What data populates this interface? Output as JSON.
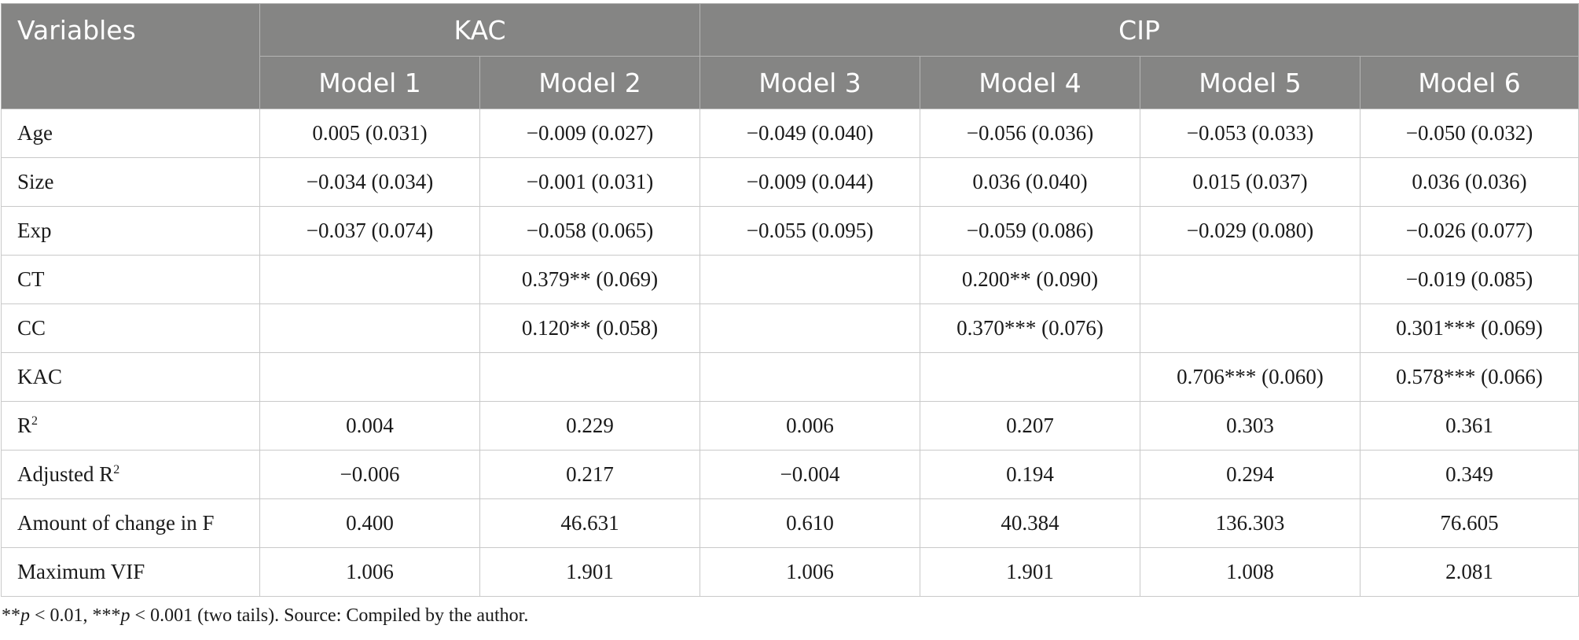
{
  "header": {
    "variables_label": "Variables",
    "group_kac": "KAC",
    "group_cip": "CIP",
    "models": [
      "Model 1",
      "Model 2",
      "Model 3",
      "Model 4",
      "Model 5",
      "Model 6"
    ]
  },
  "rows": [
    {
      "label": "Age",
      "sup": "",
      "cells": [
        "0.005 (0.031)",
        "−0.009 (0.027)",
        "−0.049 (0.040)",
        "−0.056 (0.036)",
        "−0.053 (0.033)",
        "−0.050 (0.032)"
      ]
    },
    {
      "label": "Size",
      "sup": "",
      "cells": [
        "−0.034 (0.034)",
        "−0.001 (0.031)",
        "−0.009 (0.044)",
        "0.036 (0.040)",
        "0.015 (0.037)",
        "0.036 (0.036)"
      ]
    },
    {
      "label": "Exp",
      "sup": "",
      "cells": [
        "−0.037 (0.074)",
        "−0.058 (0.065)",
        "−0.055 (0.095)",
        "−0.059 (0.086)",
        "−0.029 (0.080)",
        "−0.026 (0.077)"
      ]
    },
    {
      "label": "CT",
      "sup": "",
      "cells": [
        "",
        "0.379** (0.069)",
        "",
        "0.200** (0.090)",
        "",
        "−0.019 (0.085)"
      ]
    },
    {
      "label": "CC",
      "sup": "",
      "cells": [
        "",
        "0.120** (0.058)",
        "",
        "0.370*** (0.076)",
        "",
        "0.301*** (0.069)"
      ]
    },
    {
      "label": "KAC",
      "sup": "",
      "cells": [
        "",
        "",
        "",
        "",
        "0.706*** (0.060)",
        "0.578*** (0.066)"
      ]
    },
    {
      "label": "R",
      "sup": "2",
      "cells": [
        "0.004",
        "0.229",
        "0.006",
        "0.207",
        "0.303",
        "0.361"
      ]
    },
    {
      "label": "Adjusted R",
      "sup": "2",
      "cells": [
        "−0.006",
        "0.217",
        "−0.004",
        "0.194",
        "0.294",
        "0.349"
      ]
    },
    {
      "label": "Amount of change in F",
      "sup": "",
      "cells": [
        "0.400",
        "46.631",
        "0.610",
        "40.384",
        "136.303",
        "76.605"
      ]
    },
    {
      "label": "Maximum VIF",
      "sup": "",
      "cells": [
        "1.006",
        "1.901",
        "1.006",
        "1.901",
        "1.008",
        "2.081"
      ]
    }
  ],
  "note": {
    "stars_1": "**",
    "p_1": "p",
    "text_1": " < 0.01, ",
    "stars_2": "***",
    "p_2": "p",
    "text_2": " < 0.001 (two tails). Source: Compiled by the author."
  }
}
